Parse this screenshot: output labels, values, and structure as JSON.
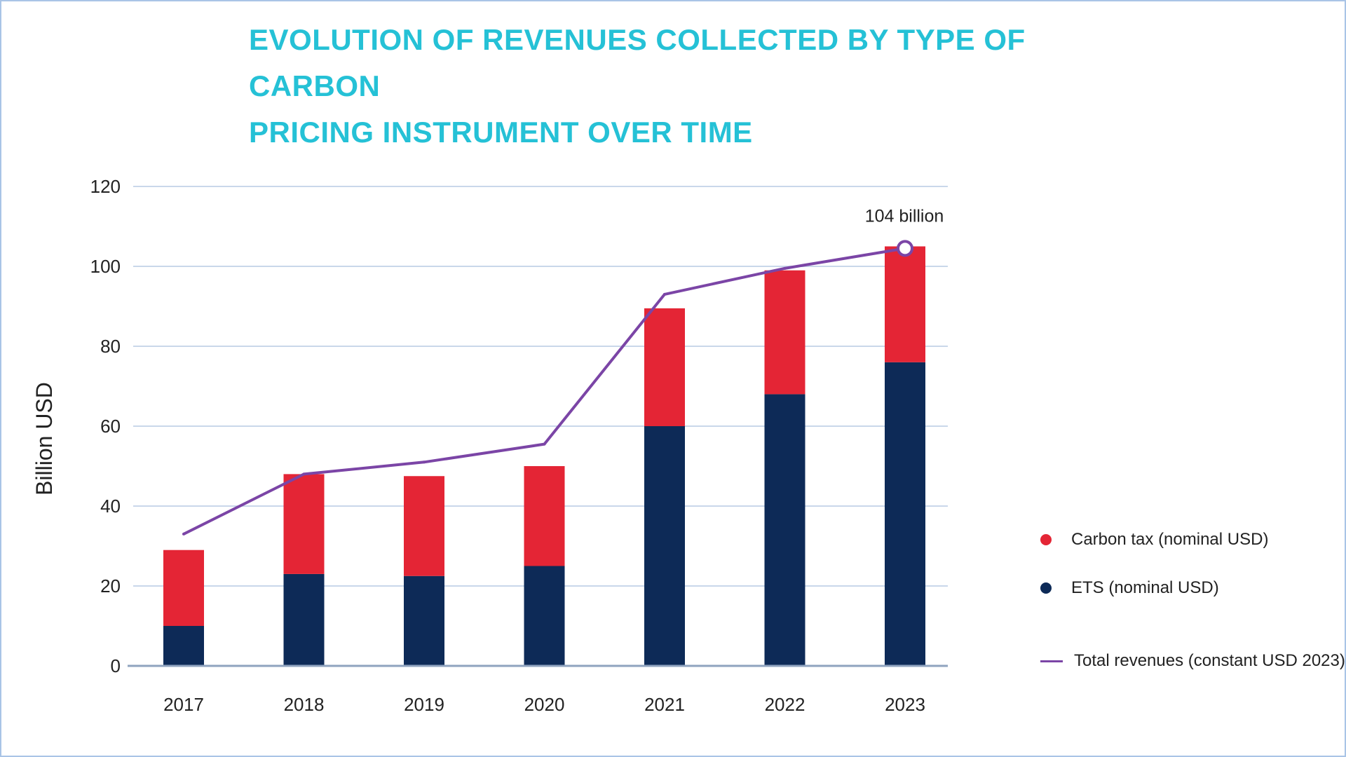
{
  "title": {
    "line1": "EVOLUTION OF REVENUES COLLECTED BY TYPE OF CARBON",
    "line2": "PRICING INSTRUMENT OVER TIME"
  },
  "colors": {
    "title": "#25c1d6",
    "carbon_tax": "#e42535",
    "ets": "#0d2a57",
    "total": "#7b45a6",
    "grid": "#c9d7ea",
    "axis": "#8fa3bf"
  },
  "legend": {
    "carbon_tax": "Carbon tax (nominal USD)",
    "ets": "ETS  (nominal USD)",
    "total": "Total revenues (constant USD 2023)"
  },
  "chart_data": {
    "type": "bar",
    "stacked": true,
    "title": "EVOLUTION OF REVENUES COLLECTED BY TYPE OF CARBON PRICING INSTRUMENT OVER TIME",
    "xlabel": "",
    "ylabel": "Billion USD",
    "ylim": [
      0,
      120
    ],
    "yticks": [
      0,
      20,
      40,
      60,
      80,
      100,
      120
    ],
    "grid": true,
    "legend_position": "right",
    "categories": [
      "2017",
      "2018",
      "2019",
      "2020",
      "2021",
      "2022",
      "2023"
    ],
    "series": [
      {
        "name": "ETS  (nominal USD)",
        "key": "ets",
        "values": [
          10,
          23,
          22.5,
          25,
          60,
          68,
          76
        ]
      },
      {
        "name": "Carbon tax (nominal USD)",
        "key": "carbon_tax",
        "values": [
          19,
          25,
          25,
          25,
          29.5,
          31,
          29
        ]
      }
    ],
    "line_series": {
      "name": "Total revenues (constant USD 2023)",
      "key": "total",
      "values": [
        33,
        48,
        51,
        55.5,
        93,
        99.5,
        104.5
      ]
    },
    "annotation": {
      "text": "104 billion",
      "category": "2023"
    }
  }
}
